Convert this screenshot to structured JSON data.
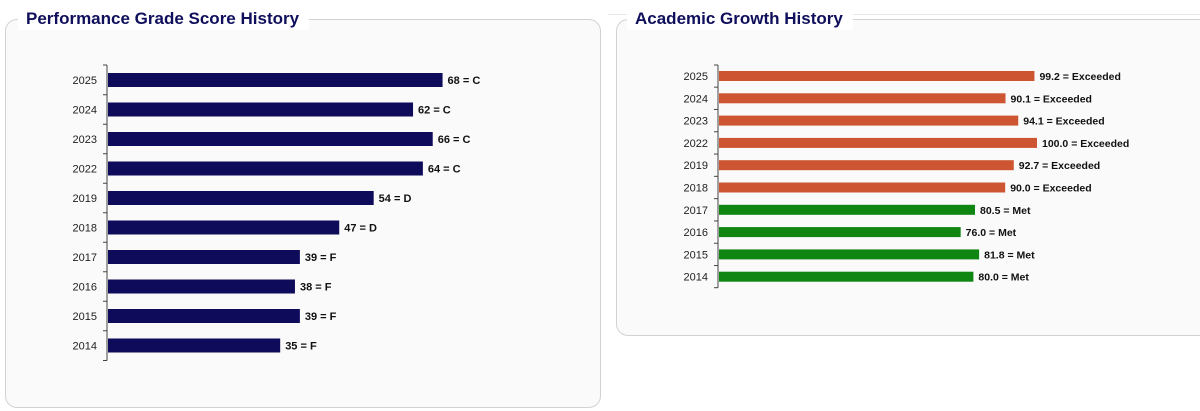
{
  "charts": [
    {
      "title": "Performance Grade Score History"
    },
    {
      "title": "Academic Growth History"
    }
  ],
  "colors": {
    "navy": "#0e0b5b",
    "exceeded": "#cd5531",
    "met": "#0f8512"
  },
  "chart_data": [
    {
      "type": "bar",
      "orientation": "horizontal",
      "title": "Performance Grade Score History",
      "categories": [
        "2025",
        "2024",
        "2023",
        "2022",
        "2019",
        "2018",
        "2017",
        "2016",
        "2015",
        "2014"
      ],
      "values": [
        68,
        62,
        66,
        64,
        54,
        47,
        39,
        38,
        39,
        35
      ],
      "data_labels": [
        "68 = C",
        "62 = C",
        "66 = C",
        "64 = C",
        "54 = D",
        "47 = D",
        "39 = F",
        "38 = F",
        "39 = F",
        "35 = F"
      ],
      "xlim": [
        0,
        100
      ],
      "grid": false,
      "bar_colors": [
        "#0e0b5b",
        "#0e0b5b",
        "#0e0b5b",
        "#0e0b5b",
        "#0e0b5b",
        "#0e0b5b",
        "#0e0b5b",
        "#0e0b5b",
        "#0e0b5b",
        "#0e0b5b"
      ]
    },
    {
      "type": "bar",
      "orientation": "horizontal",
      "title": "Academic Growth History",
      "categories": [
        "2025",
        "2024",
        "2023",
        "2022",
        "2019",
        "2018",
        "2017",
        "2016",
        "2015",
        "2014"
      ],
      "values": [
        99.2,
        90.1,
        94.1,
        100.0,
        92.7,
        90.0,
        80.5,
        76.0,
        81.8,
        80.0
      ],
      "data_labels": [
        "99.2 = Exceeded",
        "90.1 = Exceeded",
        "94.1 = Exceeded",
        "100.0 = Exceeded",
        "92.7 = Exceeded",
        "90.0 = Exceeded",
        "80.5 = Met",
        "76.0 = Met",
        "81.8 = Met",
        "80.0 = Met"
      ],
      "xlim": [
        0,
        100
      ],
      "grid": false,
      "bar_colors": [
        "#cd5531",
        "#cd5531",
        "#cd5531",
        "#cd5531",
        "#cd5531",
        "#cd5531",
        "#0f8512",
        "#0f8512",
        "#0f8512",
        "#0f8512"
      ]
    }
  ]
}
